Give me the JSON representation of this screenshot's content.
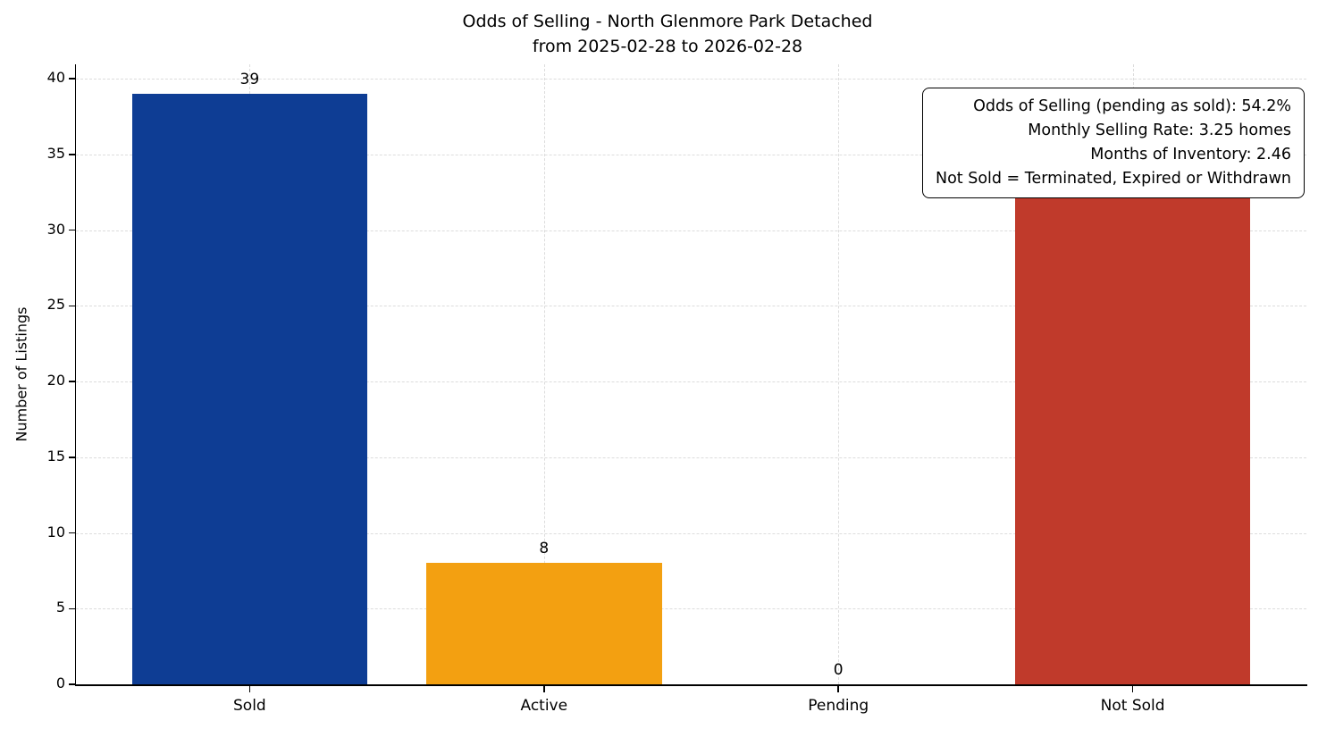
{
  "title_line1": "Odds of Selling - North Glenmore Park Detached",
  "title_line2": "from 2025-02-28 to 2026-02-28",
  "chart_data": {
    "type": "bar",
    "title": "Odds of Selling - North Glenmore Park Detached",
    "subtitle": "from 2025-02-28 to 2026-02-28",
    "xlabel": "",
    "ylabel": "Number of Listings",
    "categories": [
      "Sold",
      "Active",
      "Pending",
      "Not Sold"
    ],
    "values": [
      39,
      8,
      0,
      33
    ],
    "value_labels": [
      "39",
      "8",
      "0",
      "33"
    ],
    "bar_colors": [
      "#0e3d94",
      "#f3a011",
      "#808080",
      "#c03a2b"
    ],
    "ylim": [
      0,
      40.95
    ],
    "yticks": [
      0,
      5,
      10,
      15,
      20,
      25,
      30,
      35,
      40
    ],
    "grid": "both-dashed",
    "legend": "none",
    "annotation": {
      "position": "top-right",
      "lines": [
        "Odds of Selling (pending as sold): 54.2%",
        "Monthly Selling Rate: 3.25 homes",
        "Months of Inventory: 2.46",
        "Not Sold = Terminated, Expired or Withdrawn"
      ]
    }
  }
}
